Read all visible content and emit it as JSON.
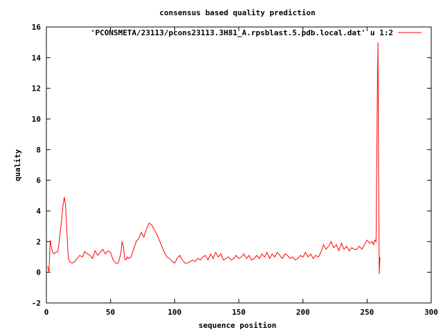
{
  "chart_data": {
    "type": "line",
    "title": "consensus based quality prediction",
    "xlabel": "sequence position",
    "ylabel": "quality",
    "xlim": [
      0,
      300
    ],
    "ylim": [
      -2,
      16
    ],
    "xticks": [
      0,
      50,
      100,
      150,
      200,
      250,
      300
    ],
    "yticks": [
      -2,
      0,
      2,
      4,
      6,
      8,
      10,
      12,
      14,
      16
    ],
    "grid": false,
    "legend_position": "top-right",
    "series": [
      {
        "name": "'PCONSMETA/23113/pcons23113.3H81_A.rpsblast.5.pdb.local.dat' u 1:2",
        "color": "#ff0000",
        "x": [
          1,
          2,
          3,
          4,
          5,
          6,
          7,
          8,
          9,
          10,
          11,
          12,
          13,
          14,
          15,
          16,
          17,
          18,
          19,
          20,
          22,
          24,
          26,
          28,
          30,
          32,
          34,
          36,
          38,
          40,
          42,
          44,
          46,
          48,
          50,
          52,
          54,
          56,
          58,
          59,
          60,
          61,
          62,
          63,
          64,
          66,
          68,
          70,
          72,
          74,
          76,
          78,
          80,
          82,
          84,
          86,
          88,
          90,
          92,
          94,
          96,
          98,
          100,
          102,
          104,
          106,
          108,
          110,
          112,
          114,
          116,
          118,
          120,
          122,
          124,
          126,
          128,
          130,
          132,
          134,
          136,
          138,
          140,
          142,
          144,
          146,
          148,
          150,
          152,
          154,
          156,
          158,
          160,
          162,
          164,
          166,
          168,
          170,
          172,
          174,
          176,
          178,
          180,
          182,
          184,
          186,
          188,
          190,
          192,
          194,
          196,
          198,
          200,
          202,
          204,
          206,
          208,
          210,
          212,
          214,
          216,
          218,
          220,
          222,
          224,
          226,
          228,
          230,
          232,
          234,
          236,
          238,
          240,
          242,
          244,
          246,
          248,
          250,
          252,
          254,
          255,
          256,
          257,
          258,
          258.5,
          259,
          259.5,
          260
        ],
        "y": [
          0.4,
          0.0,
          2.1,
          1.6,
          1.3,
          1.2,
          1.3,
          1.3,
          1.4,
          2.0,
          2.8,
          3.5,
          4.4,
          4.9,
          4.3,
          2.6,
          1.0,
          0.7,
          0.65,
          0.6,
          0.7,
          0.9,
          1.1,
          1.0,
          1.35,
          1.2,
          1.1,
          0.9,
          1.4,
          1.1,
          1.3,
          1.5,
          1.2,
          1.4,
          1.3,
          0.8,
          0.6,
          0.6,
          1.2,
          2.0,
          1.7,
          0.9,
          0.8,
          1.0,
          0.9,
          1.0,
          1.5,
          2.0,
          2.2,
          2.6,
          2.3,
          2.8,
          3.2,
          3.1,
          2.8,
          2.5,
          2.1,
          1.7,
          1.3,
          1.0,
          0.9,
          0.7,
          0.6,
          0.9,
          1.1,
          0.8,
          0.6,
          0.6,
          0.7,
          0.8,
          0.7,
          0.9,
          0.8,
          1.0,
          1.1,
          0.8,
          1.2,
          0.9,
          1.3,
          1.0,
          1.2,
          0.8,
          0.9,
          1.0,
          0.8,
          0.9,
          1.1,
          0.9,
          1.0,
          1.2,
          0.9,
          1.1,
          0.8,
          0.9,
          1.1,
          0.9,
          1.2,
          1.0,
          1.3,
          0.9,
          1.2,
          1.0,
          1.3,
          1.1,
          0.9,
          1.2,
          1.1,
          0.9,
          1.0,
          0.8,
          0.9,
          1.1,
          1.0,
          1.3,
          1.0,
          1.2,
          0.9,
          1.1,
          1.0,
          1.3,
          1.8,
          1.5,
          1.7,
          2.0,
          1.6,
          1.8,
          1.4,
          1.9,
          1.5,
          1.7,
          1.4,
          1.6,
          1.5,
          1.5,
          1.7,
          1.5,
          1.8,
          2.1,
          1.9,
          2.0,
          1.8,
          2.1,
          2.0,
          11.8,
          15.0,
          6.0,
          -0.1,
          1.0
        ]
      }
    ]
  }
}
